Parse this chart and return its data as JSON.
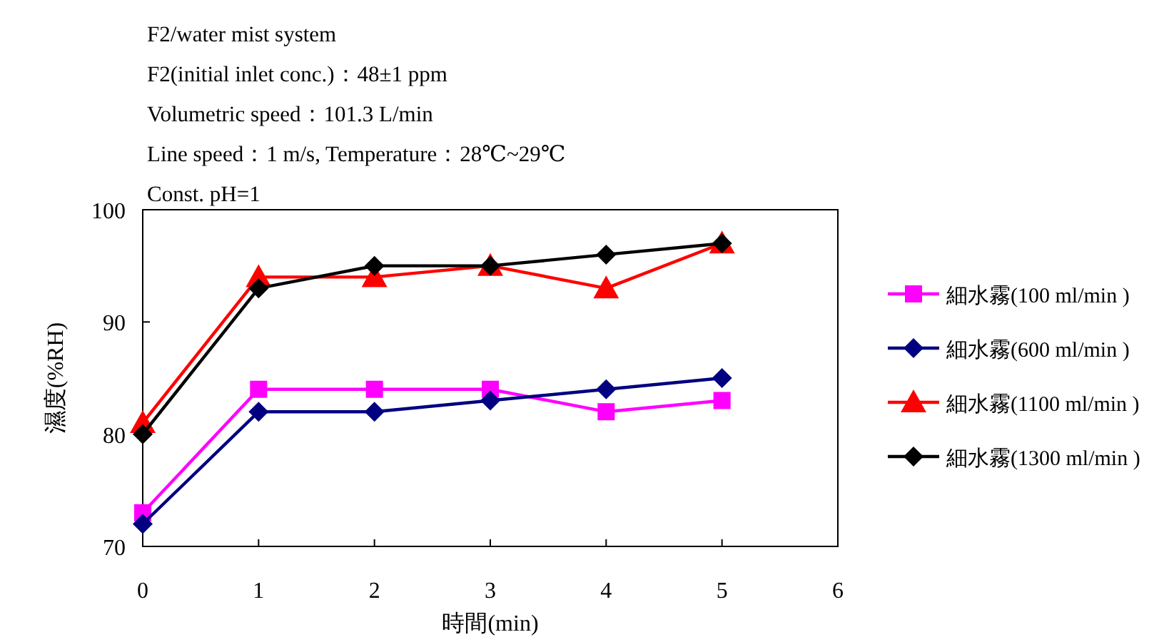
{
  "chart_data": {
    "type": "line",
    "xlabel": "時間(min)",
    "ylabel": "濕度(%RH)",
    "annotations": [
      "F2/water mist system",
      "F2(initial inlet conc.)：48±1 ppm",
      "Volumetric speed：101.3 L/min",
      "Line speed：1 m/s, Temperature：28℃~29℃",
      "Const. pH=1"
    ],
    "x": [
      0,
      1,
      2,
      3,
      4,
      5
    ],
    "xlim": [
      0,
      6
    ],
    "xticks": [
      0,
      1,
      2,
      3,
      4,
      5,
      6
    ],
    "ylim": [
      70,
      100
    ],
    "yticks": [
      70,
      80,
      90,
      100
    ],
    "grid": false,
    "legend": "right",
    "line_style": "solid",
    "series": [
      {
        "name": "細水霧(100 ml/min )",
        "color": "#ff00ff",
        "marker": "square",
        "values": [
          73,
          84,
          84,
          84,
          82,
          83
        ]
      },
      {
        "name": "細水霧(600 ml/min )",
        "color": "#000080",
        "marker": "diamond",
        "values": [
          72,
          82,
          82,
          83,
          84,
          85
        ]
      },
      {
        "name": "細水霧(1100 ml/min )",
        "color": "#ff0000",
        "marker": "triangle",
        "values": [
          81,
          94,
          94,
          95,
          93,
          97
        ]
      },
      {
        "name": "細水霧(1300 ml/min )",
        "color": "#000000",
        "marker": "diamond",
        "values": [
          80,
          93,
          95,
          95,
          96,
          97
        ]
      }
    ]
  }
}
